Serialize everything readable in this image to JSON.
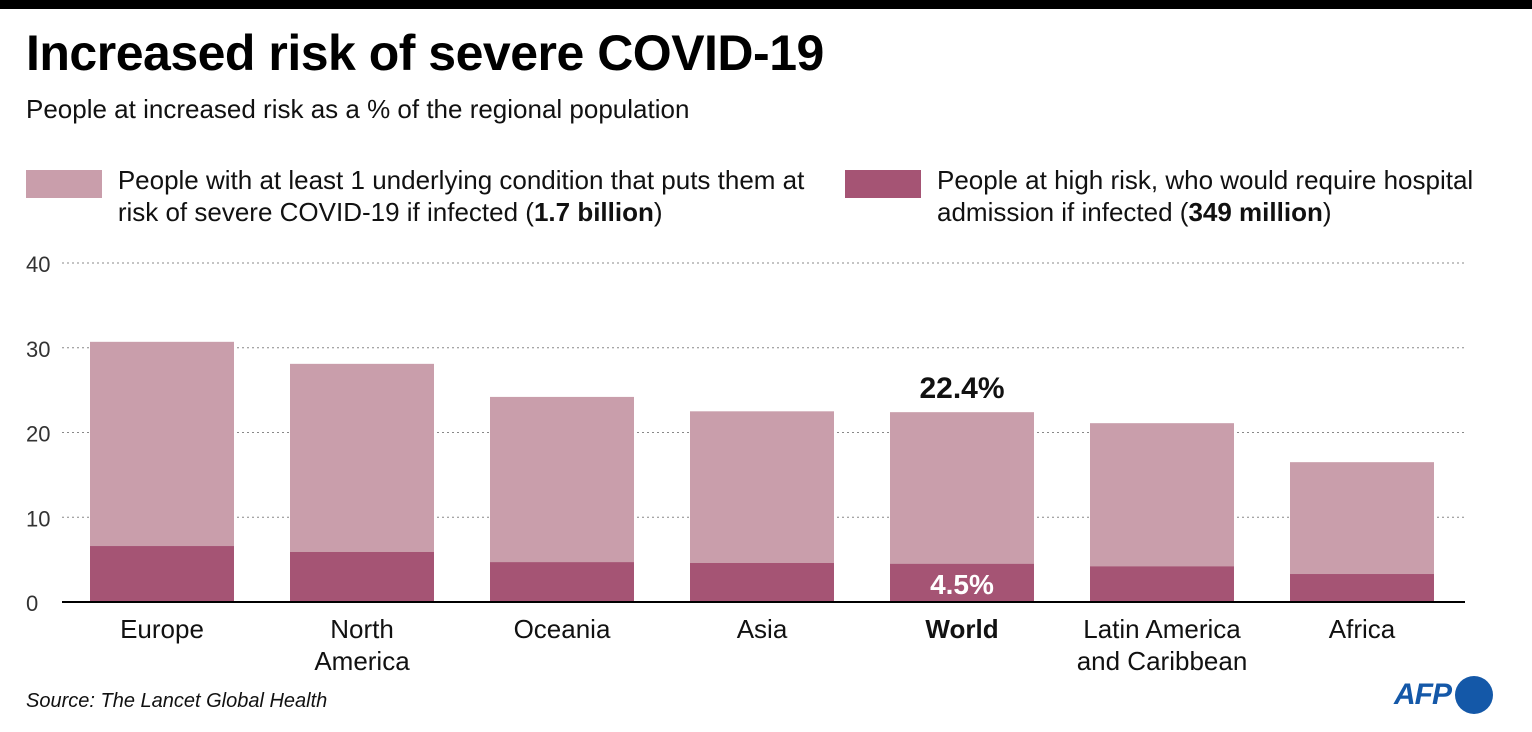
{
  "chart_data": {
    "type": "bar",
    "title": "Increased risk of severe COVID-19",
    "subtitle": "People at increased risk as a % of the regional population",
    "categories": [
      "Europe",
      "North America",
      "Oceania",
      "Asia",
      "World",
      "Latin America and Caribbean",
      "Africa"
    ],
    "category_lines": [
      [
        "Europe"
      ],
      [
        "North",
        "America"
      ],
      [
        "Oceania"
      ],
      [
        "Asia"
      ],
      [
        "World"
      ],
      [
        "Latin America",
        "and Caribbean"
      ],
      [
        "Africa"
      ]
    ],
    "series": [
      {
        "name": "People with at least 1 underlying condition that puts them at risk of severe COVID-19 if infected (1.7 billion)",
        "color": "#c99eab",
        "values": [
          30.7,
          28.1,
          24.2,
          22.5,
          22.4,
          21.1,
          16.5
        ]
      },
      {
        "name": "People at high risk, who would require hospital admission if infected (349 million)",
        "color": "#a55474",
        "values": [
          6.6,
          5.9,
          4.7,
          4.6,
          4.5,
          4.2,
          3.3
        ]
      }
    ],
    "overlay": true,
    "ylim": [
      0,
      40
    ],
    "yticks": [
      0,
      10,
      20,
      30,
      40
    ],
    "grid": true,
    "legend_position": "top",
    "annotations": [
      {
        "category": "World",
        "series": 0,
        "text": "22.4%"
      },
      {
        "category": "World",
        "series": 1,
        "text": "4.5%"
      }
    ],
    "highlight_category": "World"
  },
  "legend": {
    "item1": {
      "text": "People with at least 1 underlying condition that puts them at risk of severe COVID-19 if infected (",
      "bold": "1.7 billion",
      "end": ")"
    },
    "item2": {
      "text": "People at high risk, who would require hospital admission if infected (",
      "bold": "349 million",
      "end": ")"
    }
  },
  "source": "Source: The Lancet Global Health",
  "logo": "AFP"
}
